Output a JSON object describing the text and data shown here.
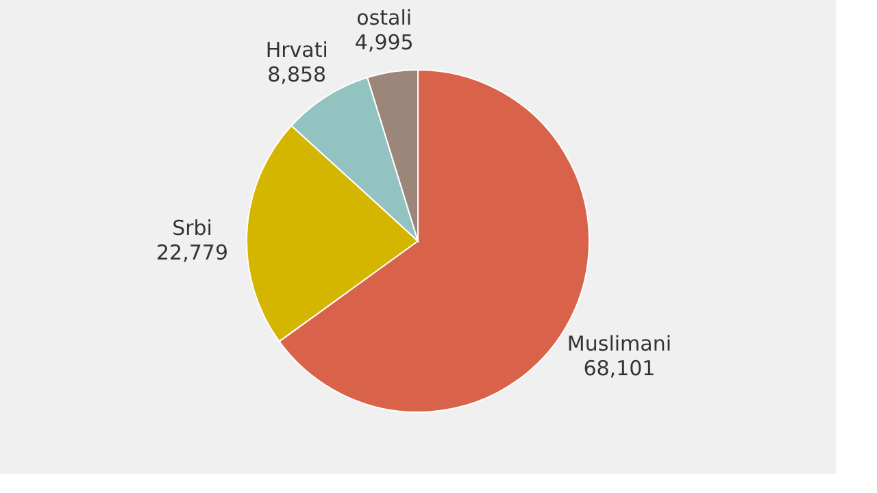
{
  "chart_data": {
    "type": "pie",
    "categories": [
      "Muslimani",
      "Srbi",
      "Hrvati",
      "ostali"
    ],
    "values": [
      68101,
      22779,
      8858,
      4995
    ],
    "value_labels": [
      "68,101",
      "22,779",
      "8,858",
      "4,995"
    ],
    "colors": [
      "#d9634a",
      "#d4b500",
      "#93c3c0",
      "#9c8579"
    ],
    "legend": false
  }
}
